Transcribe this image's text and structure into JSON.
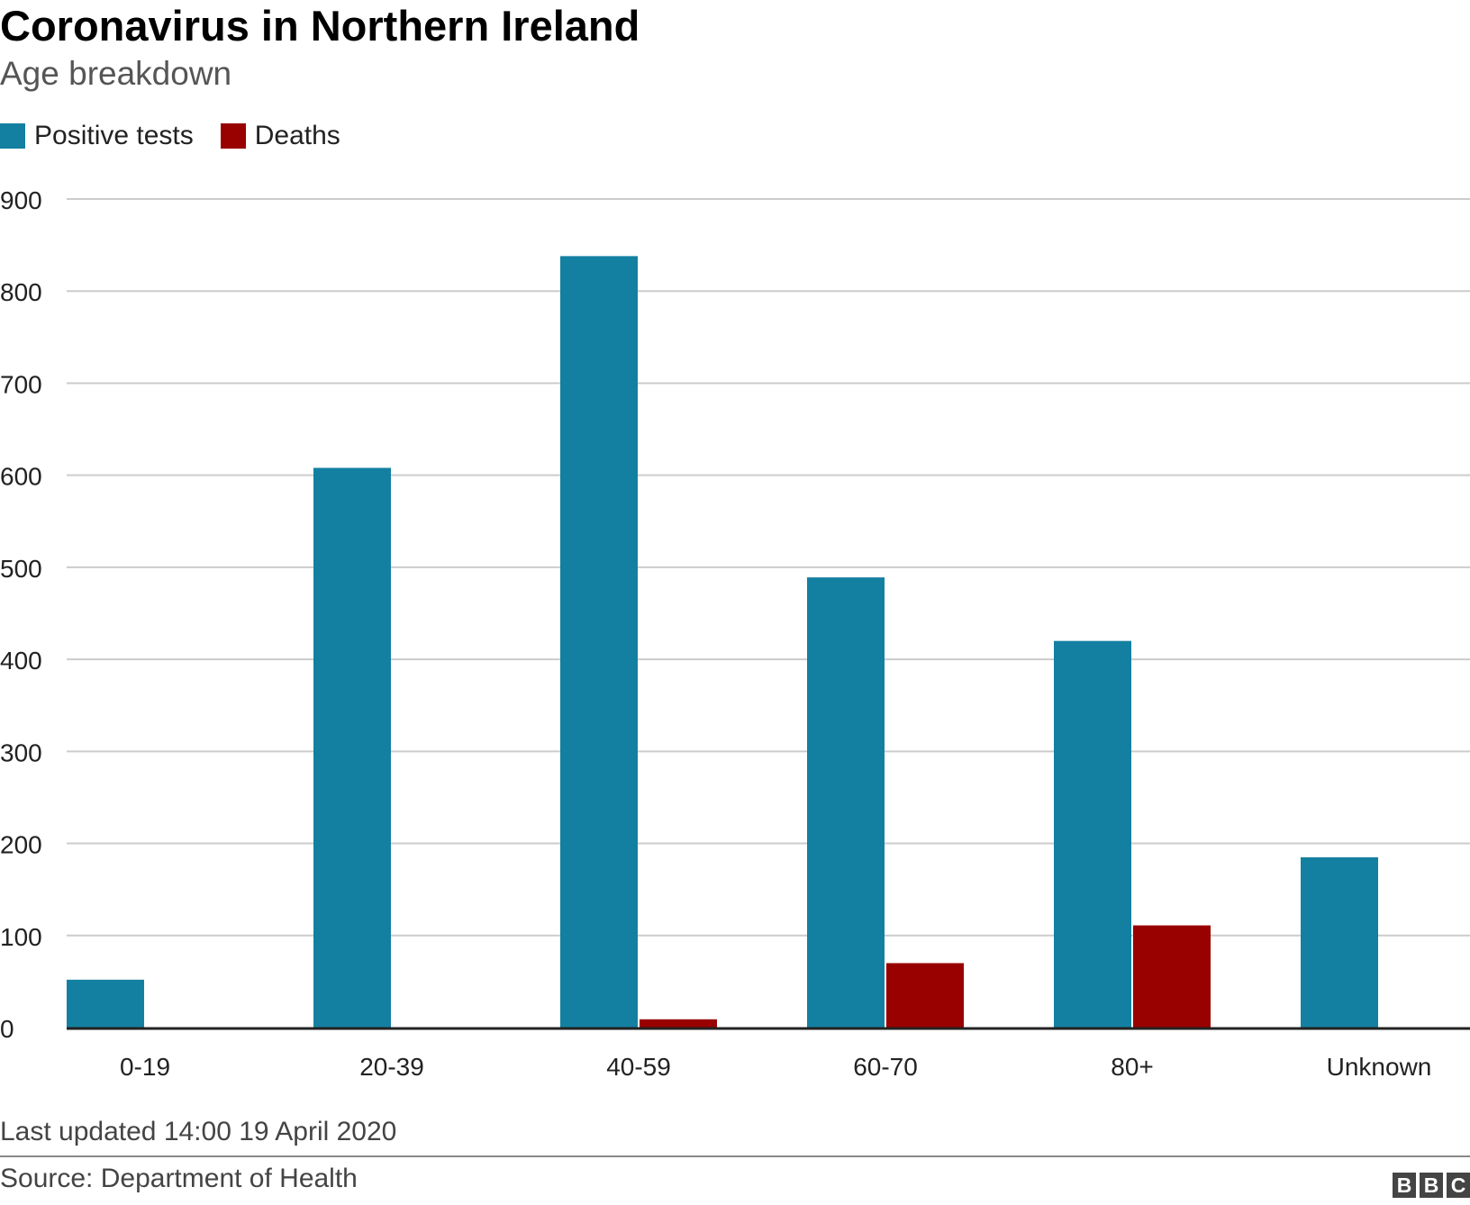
{
  "header": {
    "title": "Coronavirus in Northern Ireland",
    "subtitle": "Age breakdown"
  },
  "legend": [
    {
      "label": "Positive tests",
      "color": "#1380a1"
    },
    {
      "label": "Deaths",
      "color": "#990000"
    }
  ],
  "chart_data": {
    "type": "bar",
    "title": "Coronavirus in Northern Ireland",
    "subtitle": "Age breakdown",
    "xlabel": "",
    "ylabel": "",
    "categories": [
      "0-19",
      "20-39",
      "40-59",
      "60-70",
      "80+",
      "Unknown"
    ],
    "series": [
      {
        "name": "Positive tests",
        "color": "#1380a1",
        "values": [
          52,
          608,
          838,
          489,
          420,
          185
        ]
      },
      {
        "name": "Deaths",
        "color": "#990000",
        "values": [
          0,
          0,
          9,
          70,
          111,
          0
        ]
      }
    ],
    "ylim": [
      0,
      900
    ],
    "yticks": [
      0,
      100,
      200,
      300,
      400,
      500,
      600,
      700,
      800,
      900
    ],
    "grid": true,
    "legend_position": "top-left"
  },
  "footer": {
    "updated": "Last updated 14:00 19 April 2020",
    "source": "Source: Department of Health",
    "logo_letters": [
      "B",
      "B",
      "C"
    ]
  }
}
